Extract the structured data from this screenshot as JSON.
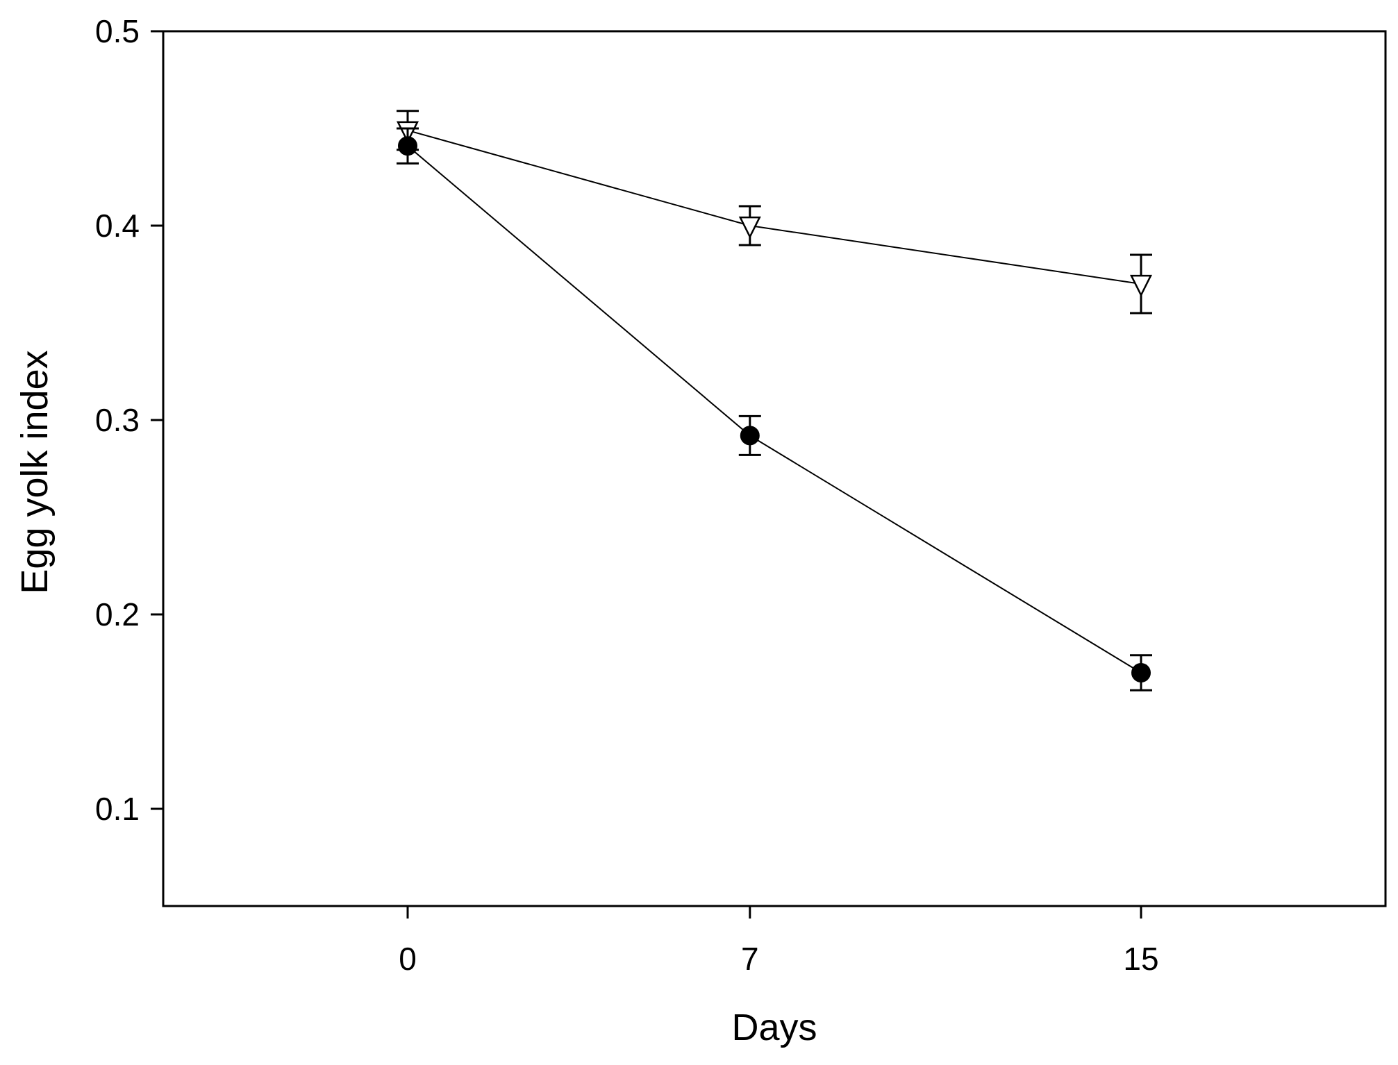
{
  "chart_data": {
    "type": "line",
    "title": "",
    "xlabel": "Days",
    "ylabel": "Egg yolk index",
    "x": [
      0,
      7,
      15
    ],
    "x_tick_labels": [
      "0",
      "7",
      "15"
    ],
    "xlim": [
      -5,
      20
    ],
    "ylim": [
      0.05,
      0.5
    ],
    "y_ticks": [
      0.1,
      0.2,
      0.3,
      0.4,
      0.5
    ],
    "y_tick_labels": [
      "0.1",
      "0.2",
      "0.3",
      "0.4",
      "0.5"
    ],
    "grid": false,
    "legend": "none",
    "series": [
      {
        "marker": "open-triangle-down",
        "values": [
          0.449,
          0.4,
          0.37
        ],
        "errors": [
          0.01,
          0.01,
          0.015
        ]
      },
      {
        "marker": "filled-circle",
        "values": [
          0.441,
          0.292,
          0.17
        ],
        "errors": [
          0.009,
          0.01,
          0.009
        ]
      }
    ]
  }
}
